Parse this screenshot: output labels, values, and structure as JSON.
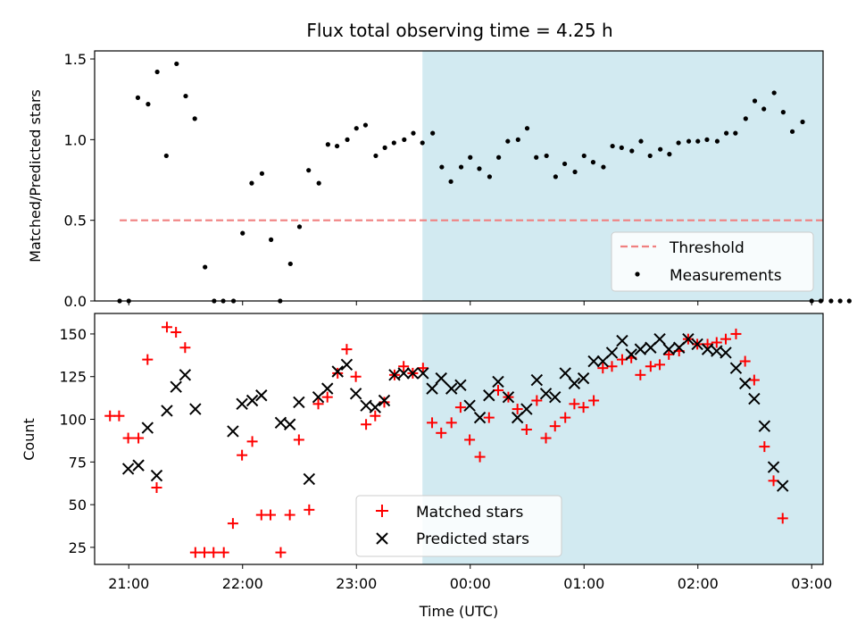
{
  "chart_data": {
    "title": "Flux total observing time = 4.25 h",
    "xlabel": "Time (UTC)",
    "x_units": "hours since 21:00 UTC",
    "x_ticks": [
      {
        "v": 0,
        "label": "21:00"
      },
      {
        "v": 1,
        "label": "22:00"
      },
      {
        "v": 2,
        "label": "23:00"
      },
      {
        "v": 3,
        "label": "00:00"
      },
      {
        "v": 4,
        "label": "01:00"
      },
      {
        "v": 5,
        "label": "02:00"
      },
      {
        "v": 6,
        "label": "03:00"
      }
    ],
    "xlim": [
      -0.3,
      6.1
    ],
    "shaded_interval": {
      "x0": 2.58,
      "x1": 6.83,
      "color": "#add8e6"
    },
    "panels": [
      {
        "type": "scatter",
        "ylabel": "Matched/Predicted stars",
        "ylim": [
          0,
          1.55
        ],
        "y_ticks": [
          0.0,
          0.5,
          1.0,
          1.5
        ],
        "y_tick_labels": [
          "0.0",
          "0.5",
          "1.0",
          "1.5"
        ],
        "legend_position": "bottom-right",
        "threshold": {
          "name": "Threshold",
          "value": 0.5,
          "x0": -0.08,
          "x1": 6.13,
          "color": "#f08080"
        },
        "series": [
          {
            "name": "Measurements",
            "color": "#000000",
            "marker": "dot",
            "x": [
              -0.08,
              0.0,
              0.08,
              0.17,
              0.25,
              0.33,
              0.42,
              0.5,
              0.58,
              0.67,
              0.75,
              0.83,
              0.92,
              1.0,
              1.08,
              1.17,
              1.25,
              1.33,
              1.42,
              1.5,
              1.58,
              1.67,
              1.75,
              1.83,
              1.92,
              2.0,
              2.08,
              2.17,
              2.25,
              2.33,
              2.42,
              2.5,
              2.58,
              2.67,
              2.75,
              2.83,
              2.92,
              3.0,
              3.08,
              3.17,
              3.25,
              3.33,
              3.42,
              3.5,
              3.58,
              3.67,
              3.75,
              3.83,
              3.92,
              4.0,
              4.08,
              4.17,
              4.25,
              4.33,
              4.42,
              4.5,
              4.58,
              4.67,
              4.75,
              4.83,
              4.92,
              5.0,
              5.08,
              5.17,
              5.25,
              5.33,
              5.42,
              5.5,
              5.58,
              5.67,
              5.75,
              5.83,
              5.92,
              6.0,
              6.08,
              6.17,
              6.25,
              6.33,
              6.42,
              6.5
            ],
            "y": [
              0.0,
              0.0,
              1.26,
              1.22,
              1.42,
              0.9,
              1.47,
              1.27,
              1.13,
              0.21,
              0.0,
              0.0,
              0.0,
              0.42,
              0.73,
              0.79,
              0.38,
              0.0,
              0.23,
              0.46,
              0.81,
              0.73,
              0.97,
              0.96,
              1.0,
              1.07,
              1.09,
              0.9,
              0.95,
              0.98,
              1.0,
              1.04,
              0.98,
              1.04,
              0.83,
              0.74,
              0.83,
              0.89,
              0.82,
              0.77,
              0.89,
              0.99,
              1.0,
              1.07,
              0.89,
              0.9,
              0.77,
              0.85,
              0.8,
              0.9,
              0.86,
              0.83,
              0.96,
              0.95,
              0.93,
              0.99,
              0.9,
              0.94,
              0.91,
              0.98,
              0.99,
              0.99,
              1.0,
              0.99,
              1.04,
              1.04,
              1.13,
              1.24,
              1.19,
              1.29,
              1.17,
              1.05,
              1.11,
              0.0,
              0.0,
              0.0,
              0.0,
              0.0,
              0.0,
              0.0
            ]
          }
        ]
      },
      {
        "type": "scatter",
        "ylabel": "Count",
        "ylim": [
          15,
          162
        ],
        "y_ticks": [
          25,
          50,
          75,
          100,
          125,
          150
        ],
        "y_tick_labels": [
          "25",
          "50",
          "75",
          "100",
          "125",
          "150"
        ],
        "legend_position": "bottom-center",
        "series": [
          {
            "name": "Matched stars",
            "color": "#ff0000",
            "marker": "plus",
            "x": [
              -0.08,
              0.0,
              0.08,
              0.17,
              0.25,
              0.33,
              0.42,
              0.5,
              0.58,
              0.67,
              0.75,
              0.83,
              0.92,
              1.0,
              1.08,
              1.17,
              1.25,
              1.33,
              1.42,
              1.5,
              1.58,
              1.67,
              1.75,
              1.83,
              1.92,
              2.0,
              2.08,
              2.17,
              2.25,
              2.33,
              2.42,
              2.5,
              2.58,
              2.67,
              2.75,
              2.83,
              2.92,
              3.0,
              3.08,
              3.17,
              3.25,
              3.33,
              3.42,
              3.5,
              3.58,
              3.67,
              3.75,
              3.83,
              3.92,
              4.0,
              4.08,
              4.17,
              4.25,
              4.33,
              4.42,
              4.5,
              4.58,
              4.67,
              4.75,
              4.83,
              4.92,
              5.0,
              5.08,
              5.17,
              5.25,
              5.33,
              5.42,
              5.5,
              5.58,
              5.67,
              5.75,
              5.83
            ],
            "y": [
              102,
              102,
              89,
              89,
              135,
              60,
              154,
              151,
              142,
              22,
              22,
              22,
              22,
              39,
              79,
              87,
              44,
              44,
              22,
              44,
              88,
              47,
              109,
              113,
              127,
              141,
              125,
              97,
              102,
              110,
              126,
              131,
              127,
              130,
              98,
              92,
              98,
              107,
              88,
              78,
              101,
              117,
              113,
              106,
              94,
              111,
              89,
              96,
              101,
              109,
              107,
              111,
              130,
              131,
              135,
              136,
              126,
              131,
              132,
              138,
              140,
              147,
              144,
              144,
              145,
              147,
              150,
              134,
              123,
              84,
              64,
              42
            ],
            "x_offset": -0.085
          },
          {
            "name": "Predicted stars",
            "color": "#000000",
            "marker": "x",
            "x": [
              0.08,
              0.17,
              0.25,
              0.33,
              0.42,
              0.5,
              0.58,
              0.67,
              1.0,
              1.08,
              1.17,
              1.25,
              1.42,
              1.5,
              1.58,
              1.67,
              1.75,
              1.83,
              1.92,
              2.0,
              2.08,
              2.17,
              2.25,
              2.33,
              2.42,
              2.5,
              2.58,
              2.67,
              2.75,
              2.83,
              2.92,
              3.0,
              3.08,
              3.17,
              3.25,
              3.33,
              3.42,
              3.5,
              3.58,
              3.67,
              3.75,
              3.83,
              3.92,
              4.0,
              4.08,
              4.17,
              4.25,
              4.33,
              4.42,
              4.5,
              4.58,
              4.67,
              4.75,
              4.83,
              4.92,
              5.0,
              5.08,
              5.17,
              5.25,
              5.33,
              5.42,
              5.5,
              5.58,
              5.67,
              5.75,
              5.83
            ],
            "y": [
              71,
              73,
              95,
              67,
              105,
              119,
              126,
              106,
              93,
              109,
              111,
              114,
              98,
              97,
              110,
              65,
              113,
              118,
              128,
              132,
              115,
              108,
              107,
              111,
              126,
              127,
              127,
              127,
              118,
              124,
              118,
              120,
              108,
              101,
              114,
              122,
              113,
              101,
              106,
              123,
              115,
              113,
              127,
              121,
              124,
              134,
              134,
              139,
              146,
              138,
              141,
              142,
              147,
              141,
              142,
              147,
              144,
              141,
              140,
              139,
              130,
              121,
              112,
              96,
              72,
              61
            ],
            "x_offset": -0.085
          }
        ]
      }
    ]
  }
}
